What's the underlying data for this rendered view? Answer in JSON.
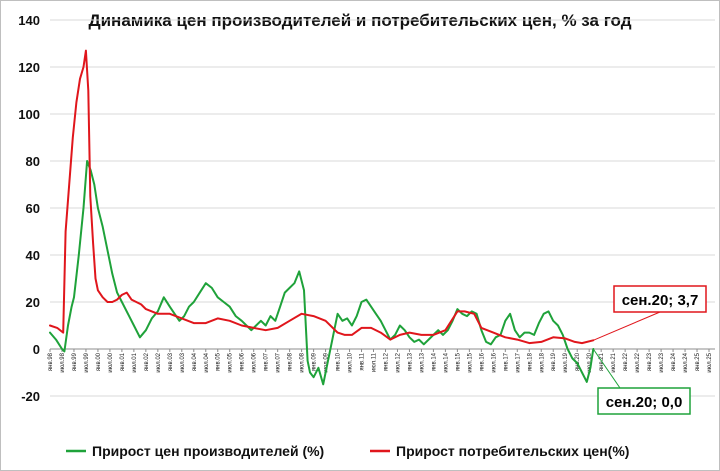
{
  "chart_data": {
    "type": "line",
    "title": "Динамика цен производителей и потребительских цен, % за год",
    "ylim": [
      -20,
      140
    ],
    "yticks": [
      "-20",
      "0",
      "20",
      "40",
      "60",
      "80",
      "100",
      "120",
      "140"
    ],
    "xlim": [
      1998.0,
      2025.75
    ],
    "xtick_labels": [
      "янв.98",
      "июл.98",
      "янв.99",
      "июл.99",
      "янв.00",
      "июл.00",
      "янв.01",
      "июл.01",
      "янв.02",
      "июл.02",
      "янв.03",
      "июл.03",
      "янв.04",
      "июл.04",
      "янв.05",
      "июл.05",
      "янв.06",
      "июл.06",
      "янв.07",
      "июл.07",
      "янв.08",
      "июл.08",
      "янв.09",
      "июл.09",
      "янв.10",
      "июл.10",
      "янв.11",
      "июл.11",
      "янв.12",
      "июл.12",
      "янв.13",
      "июл.13",
      "янв.14",
      "июл.14",
      "янв.15",
      "июл.15",
      "янв.16",
      "июл.16",
      "янв.17",
      "июл.17",
      "янв.18",
      "июл.18",
      "янв.19",
      "июл.19",
      "янв.20",
      "июл.20",
      "янв.21",
      "июл.21",
      "янв.22",
      "июл.22",
      "янв.23",
      "июл.23",
      "янв.24",
      "июл.24",
      "янв.25",
      "июл.25"
    ],
    "grid": true,
    "legend_position": "bottom",
    "series": [
      {
        "name": "Прирост цен производителей (%)",
        "color": "#1fa23a",
        "points": [
          [
            1998.0,
            7
          ],
          [
            1998.25,
            4
          ],
          [
            1998.5,
            0
          ],
          [
            1998.6,
            -1
          ],
          [
            1998.75,
            10
          ],
          [
            1998.9,
            18
          ],
          [
            1999.0,
            22
          ],
          [
            1999.2,
            40
          ],
          [
            1999.4,
            60
          ],
          [
            1999.55,
            80
          ],
          [
            1999.7,
            76
          ],
          [
            1999.85,
            70
          ],
          [
            2000.0,
            60
          ],
          [
            2000.2,
            52
          ],
          [
            2000.4,
            42
          ],
          [
            2000.6,
            32
          ],
          [
            2000.8,
            24
          ],
          [
            2001.0,
            20
          ],
          [
            2001.3,
            14
          ],
          [
            2001.5,
            10
          ],
          [
            2001.75,
            5
          ],
          [
            2002.0,
            8
          ],
          [
            2002.25,
            13
          ],
          [
            2002.5,
            16
          ],
          [
            2002.75,
            22
          ],
          [
            2003.0,
            18
          ],
          [
            2003.2,
            15
          ],
          [
            2003.4,
            12
          ],
          [
            2003.6,
            14
          ],
          [
            2003.8,
            18
          ],
          [
            2004.0,
            20
          ],
          [
            2004.25,
            24
          ],
          [
            2004.5,
            28
          ],
          [
            2004.75,
            26
          ],
          [
            2005.0,
            22
          ],
          [
            2005.25,
            20
          ],
          [
            2005.5,
            18
          ],
          [
            2005.75,
            14
          ],
          [
            2006.0,
            12
          ],
          [
            2006.2,
            10
          ],
          [
            2006.4,
            8
          ],
          [
            2006.6,
            10
          ],
          [
            2006.8,
            12
          ],
          [
            2007.0,
            10
          ],
          [
            2007.2,
            14
          ],
          [
            2007.4,
            12
          ],
          [
            2007.6,
            18
          ],
          [
            2007.8,
            24
          ],
          [
            2008.0,
            26
          ],
          [
            2008.2,
            28
          ],
          [
            2008.4,
            33
          ],
          [
            2008.6,
            25
          ],
          [
            2008.75,
            -5
          ],
          [
            2008.85,
            -10
          ],
          [
            2009.0,
            -12
          ],
          [
            2009.2,
            -8
          ],
          [
            2009.4,
            -15
          ],
          [
            2009.6,
            -5
          ],
          [
            2009.8,
            5
          ],
          [
            2010.0,
            15
          ],
          [
            2010.2,
            12
          ],
          [
            2010.4,
            13
          ],
          [
            2010.6,
            10
          ],
          [
            2010.8,
            14
          ],
          [
            2011.0,
            20
          ],
          [
            2011.2,
            21
          ],
          [
            2011.4,
            18
          ],
          [
            2011.6,
            15
          ],
          [
            2011.8,
            12
          ],
          [
            2012.0,
            8
          ],
          [
            2012.2,
            4
          ],
          [
            2012.4,
            6
          ],
          [
            2012.6,
            10
          ],
          [
            2012.8,
            8
          ],
          [
            2013.0,
            5
          ],
          [
            2013.2,
            3
          ],
          [
            2013.4,
            4
          ],
          [
            2013.6,
            2
          ],
          [
            2013.8,
            4
          ],
          [
            2014.0,
            6
          ],
          [
            2014.2,
            8
          ],
          [
            2014.4,
            6
          ],
          [
            2014.6,
            8
          ],
          [
            2014.8,
            12
          ],
          [
            2015.0,
            17
          ],
          [
            2015.2,
            15
          ],
          [
            2015.4,
            14
          ],
          [
            2015.6,
            16
          ],
          [
            2015.8,
            15
          ],
          [
            2016.0,
            8
          ],
          [
            2016.2,
            3
          ],
          [
            2016.4,
            2
          ],
          [
            2016.6,
            5
          ],
          [
            2016.8,
            6
          ],
          [
            2017.0,
            12
          ],
          [
            2017.2,
            15
          ],
          [
            2017.4,
            8
          ],
          [
            2017.6,
            5
          ],
          [
            2017.8,
            7
          ],
          [
            2018.0,
            7
          ],
          [
            2018.2,
            6
          ],
          [
            2018.4,
            11
          ],
          [
            2018.6,
            15
          ],
          [
            2018.8,
            16
          ],
          [
            2019.0,
            12
          ],
          [
            2019.2,
            10
          ],
          [
            2019.4,
            6
          ],
          [
            2019.6,
            0
          ],
          [
            2019.8,
            -4
          ],
          [
            2020.0,
            -6
          ],
          [
            2020.2,
            -10
          ],
          [
            2020.4,
            -14
          ],
          [
            2020.55,
            -8
          ],
          [
            2020.67,
            0
          ]
        ]
      },
      {
        "name": "Прирост потребительских цен(%)",
        "color": "#e0161c",
        "points": [
          [
            1998.0,
            10
          ],
          [
            1998.3,
            9
          ],
          [
            1998.55,
            7
          ],
          [
            1998.65,
            50
          ],
          [
            1998.8,
            70
          ],
          [
            1998.95,
            90
          ],
          [
            1999.1,
            105
          ],
          [
            1999.25,
            115
          ],
          [
            1999.4,
            120
          ],
          [
            1999.5,
            127
          ],
          [
            1999.6,
            110
          ],
          [
            1999.68,
            65
          ],
          [
            1999.8,
            45
          ],
          [
            1999.9,
            30
          ],
          [
            2000.0,
            25
          ],
          [
            2000.2,
            22
          ],
          [
            2000.4,
            20
          ],
          [
            2000.6,
            20
          ],
          [
            2000.8,
            21
          ],
          [
            2001.0,
            23
          ],
          [
            2001.2,
            24
          ],
          [
            2001.4,
            21
          ],
          [
            2001.6,
            20
          ],
          [
            2001.8,
            19
          ],
          [
            2002.0,
            17
          ],
          [
            2002.5,
            15
          ],
          [
            2003.0,
            15
          ],
          [
            2003.5,
            13
          ],
          [
            2004.0,
            11
          ],
          [
            2004.5,
            11
          ],
          [
            2005.0,
            13
          ],
          [
            2005.5,
            12
          ],
          [
            2006.0,
            10
          ],
          [
            2006.5,
            9
          ],
          [
            2007.0,
            8
          ],
          [
            2007.5,
            9
          ],
          [
            2008.0,
            12
          ],
          [
            2008.5,
            15
          ],
          [
            2009.0,
            14
          ],
          [
            2009.5,
            12
          ],
          [
            2010.0,
            7
          ],
          [
            2010.3,
            6
          ],
          [
            2010.6,
            6
          ],
          [
            2011.0,
            9
          ],
          [
            2011.4,
            9
          ],
          [
            2011.8,
            7
          ],
          [
            2012.2,
            4
          ],
          [
            2012.6,
            6
          ],
          [
            2013.0,
            7
          ],
          [
            2013.5,
            6
          ],
          [
            2014.0,
            6
          ],
          [
            2014.5,
            8
          ],
          [
            2015.0,
            16
          ],
          [
            2015.3,
            16
          ],
          [
            2015.7,
            15
          ],
          [
            2016.0,
            9
          ],
          [
            2016.5,
            7
          ],
          [
            2017.0,
            5
          ],
          [
            2017.5,
            4
          ],
          [
            2018.0,
            2.5
          ],
          [
            2018.5,
            3
          ],
          [
            2019.0,
            5
          ],
          [
            2019.5,
            4.5
          ],
          [
            2019.9,
            3
          ],
          [
            2020.2,
            2.5
          ],
          [
            2020.67,
            3.7
          ]
        ]
      }
    ],
    "annotations": [
      {
        "text": "сен.20; 3,7",
        "color": "#e0161c"
      },
      {
        "text": "сен.20; 0,0",
        "color": "#1fa23a"
      }
    ]
  }
}
